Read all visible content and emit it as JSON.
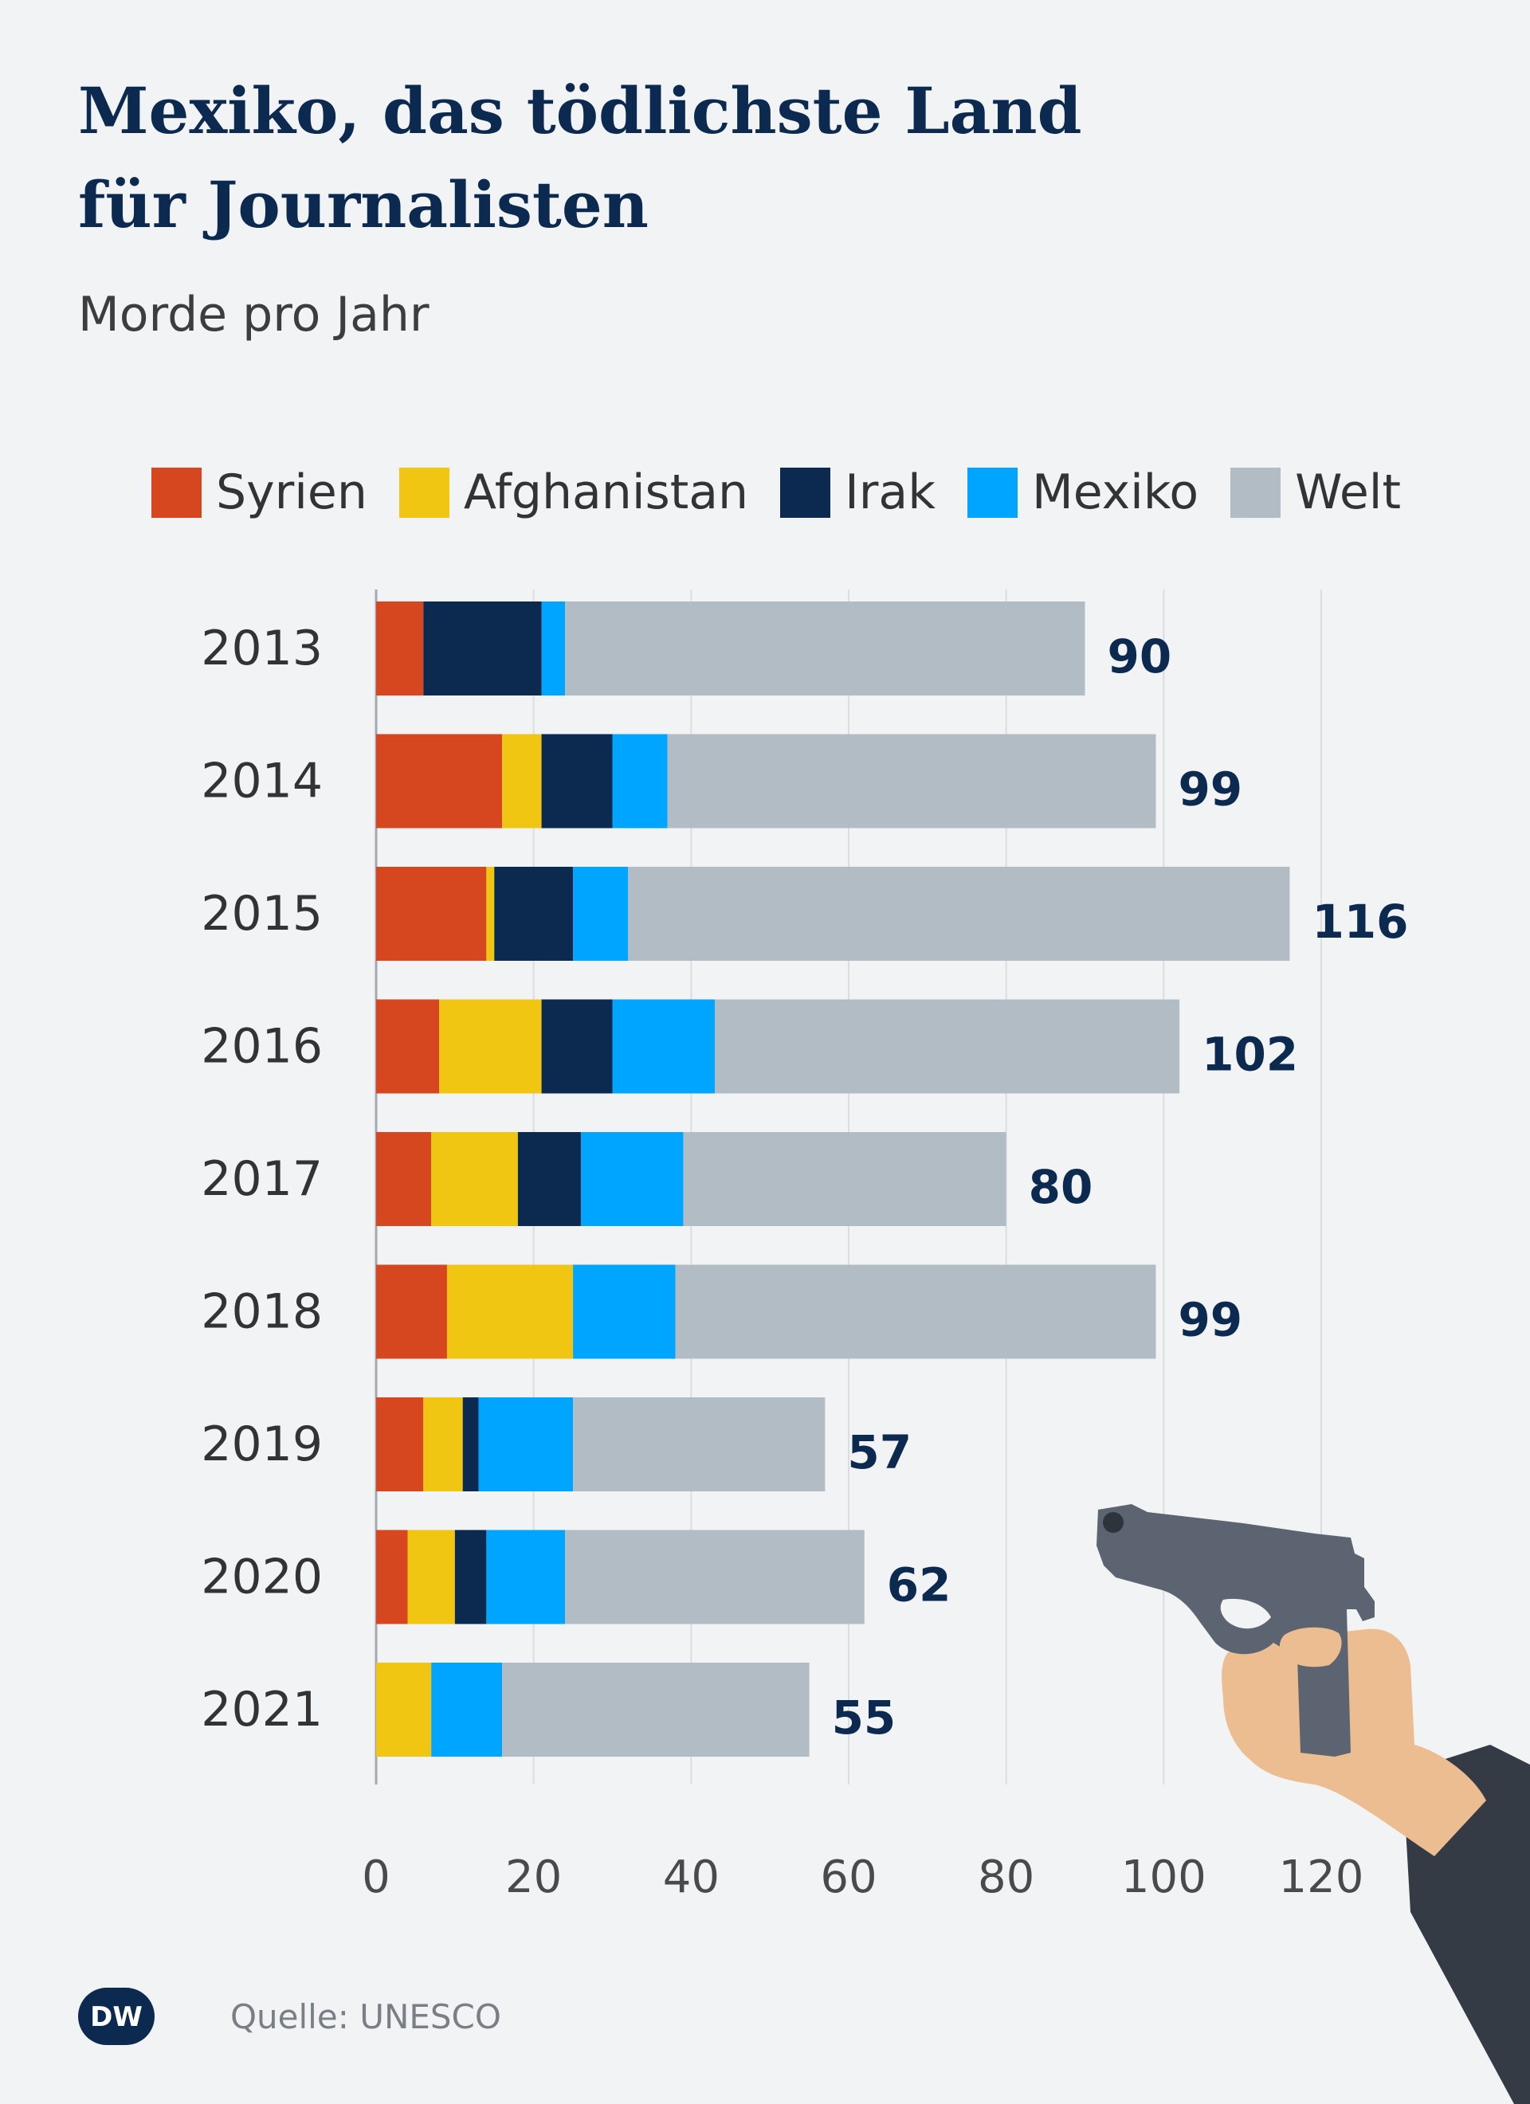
{
  "title_lines": [
    "Mexiko, das tödlichste Land",
    "für Journalisten"
  ],
  "subtitle": "Morde pro Jahr",
  "legend": [
    {
      "label": "Syrien",
      "color": "#d6461f"
    },
    {
      "label": "Afghanistan",
      "color": "#f0c613"
    },
    {
      "label": "Irak",
      "color": "#0c2a50"
    },
    {
      "label": "Mexiko",
      "color": "#00a5ff"
    },
    {
      "label": "Welt",
      "color": "#b2bcc5"
    }
  ],
  "source": "Quelle: UNESCO",
  "logo_text": "DW",
  "illustration": "hand-holding-pistol",
  "chart_data": {
    "type": "bar",
    "orientation": "horizontal",
    "stacked": true,
    "title": "Mexiko, das tödlichste Land für Journalisten",
    "subtitle": "Morde pro Jahr",
    "categories": [
      "2013",
      "2014",
      "2015",
      "2016",
      "2017",
      "2018",
      "2019",
      "2020",
      "2021"
    ],
    "series": [
      {
        "name": "Syrien",
        "color": "#d6461f",
        "values": [
          6,
          16,
          14,
          8,
          7,
          9,
          6,
          4,
          0
        ]
      },
      {
        "name": "Afghanistan",
        "color": "#f0c613",
        "values": [
          0,
          5,
          1,
          13,
          11,
          16,
          5,
          6,
          7
        ]
      },
      {
        "name": "Irak",
        "color": "#0c2a50",
        "values": [
          15,
          9,
          10,
          9,
          8,
          0,
          2,
          4,
          0
        ]
      },
      {
        "name": "Mexiko",
        "color": "#00a5ff",
        "values": [
          3,
          7,
          7,
          13,
          13,
          13,
          12,
          10,
          9
        ]
      },
      {
        "name": "Welt",
        "color": "#b2bcc5",
        "values": [
          66,
          62,
          84,
          59,
          41,
          61,
          32,
          38,
          39
        ]
      }
    ],
    "totals": [
      90,
      99,
      116,
      102,
      80,
      99,
      57,
      62,
      55
    ],
    "xlim": [
      0,
      120
    ],
    "xticks": [
      0,
      20,
      40,
      60,
      80,
      100,
      120
    ],
    "grid": true,
    "legend_position": "top"
  }
}
